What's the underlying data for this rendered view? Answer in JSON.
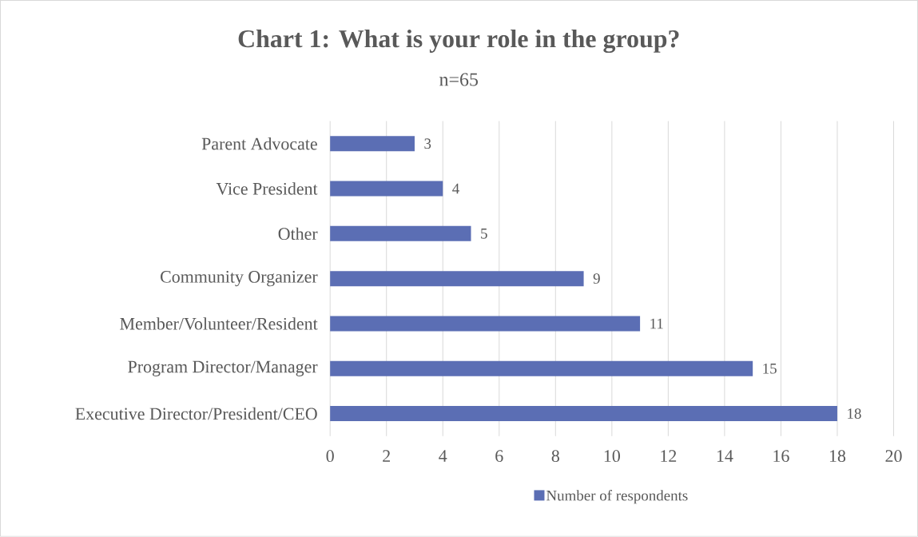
{
  "chart_data": {
    "type": "bar",
    "orientation": "horizontal",
    "title": "Chart 1:  What is your role in the group?",
    "subtitle": "n=65",
    "categories": [
      "Parent Advocate",
      "Vice President",
      "Other",
      "Community Organizer",
      "Member/Volunteer/Resident",
      "Program Director/Manager",
      "Executive Director/President/CEO"
    ],
    "series": [
      {
        "name": "Number of respondents",
        "color": "#5b6eb4",
        "values": [
          3,
          4,
          5,
          9,
          11,
          15,
          18
        ]
      }
    ],
    "xlim": [
      0,
      20
    ],
    "xticks": [
      0,
      2,
      4,
      6,
      8,
      10,
      12,
      14,
      16,
      18,
      20
    ],
    "grid": "x",
    "legend": "bottom",
    "data_labels": true
  }
}
